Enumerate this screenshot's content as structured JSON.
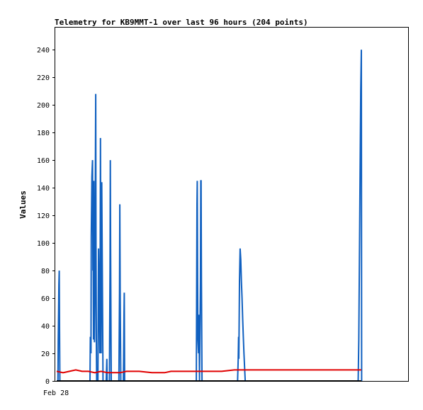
{
  "chart_data": {
    "type": "line",
    "title": "Telemetry for KB9MMT-1 over last 96 hours (204 points)",
    "xlabel": "",
    "ylabel": "Values",
    "ylim": [
      0,
      256
    ],
    "yticks": [
      0,
      20,
      40,
      60,
      80,
      100,
      120,
      140,
      160,
      180,
      200,
      220,
      240
    ],
    "xlim": [
      0,
      96
    ],
    "xtick_labels": [
      {
        "x": 0,
        "label": "Feb 28"
      }
    ],
    "grid": false,
    "series": [
      {
        "color": "#1060c0",
        "points": [
          [
            0,
            0
          ],
          [
            0.4,
            0
          ],
          [
            0.5,
            30
          ],
          [
            0.6,
            50
          ],
          [
            0.7,
            70
          ],
          [
            0.8,
            80
          ],
          [
            0.9,
            40
          ],
          [
            1.0,
            0
          ],
          [
            2,
            0
          ],
          [
            10.5,
            0
          ],
          [
            10.6,
            32
          ],
          [
            10.7,
            25
          ],
          [
            10.8,
            20
          ],
          [
            10.9,
            105
          ],
          [
            11.0,
            128
          ],
          [
            11.1,
            148
          ],
          [
            11.2,
            155
          ],
          [
            11.3,
            160
          ],
          [
            11.4,
            80
          ],
          [
            11.5,
            95
          ],
          [
            11.6,
            30
          ],
          [
            11.7,
            145
          ],
          [
            11.8,
            72
          ],
          [
            11.9,
            28
          ],
          [
            12.0,
            55
          ],
          [
            12.1,
            90
          ],
          [
            12.2,
            150
          ],
          [
            12.3,
            208
          ],
          [
            12.4,
            100
          ],
          [
            12.5,
            30
          ],
          [
            12.6,
            0
          ],
          [
            13.0,
            0
          ],
          [
            13.2,
            96
          ],
          [
            13.4,
            60
          ],
          [
            13.6,
            20
          ],
          [
            13.7,
            88
          ],
          [
            13.8,
            176
          ],
          [
            13.9,
            80
          ],
          [
            14.0,
            20
          ],
          [
            14.2,
            144
          ],
          [
            14.4,
            72
          ],
          [
            14.6,
            0
          ],
          [
            15.6,
            0
          ],
          [
            15.8,
            16
          ],
          [
            15.9,
            0
          ],
          [
            16.6,
            0
          ],
          [
            16.8,
            80
          ],
          [
            16.9,
            160
          ],
          [
            17.0,
            96
          ],
          [
            17.2,
            0
          ],
          [
            19.6,
            0
          ],
          [
            19.8,
            64
          ],
          [
            19.9,
            128
          ],
          [
            20.0,
            64
          ],
          [
            20.2,
            0
          ],
          [
            21.0,
            0
          ],
          [
            21.1,
            16
          ],
          [
            21.2,
            48
          ],
          [
            21.3,
            64
          ],
          [
            21.4,
            0
          ],
          [
            44.0,
            0
          ],
          [
            44.1,
            55
          ],
          [
            44.2,
            128
          ],
          [
            44.3,
            145
          ],
          [
            44.4,
            72
          ],
          [
            44.5,
            30
          ],
          [
            44.7,
            20
          ],
          [
            44.8,
            48
          ],
          [
            44.9,
            30
          ],
          [
            45.0,
            0
          ],
          [
            45.3,
            72
          ],
          [
            45.4,
            145
          ],
          [
            45.5,
            145
          ],
          [
            45.6,
            72
          ],
          [
            45.8,
            0
          ],
          [
            57.0,
            0
          ],
          [
            57.2,
            16
          ],
          [
            57.3,
            32
          ],
          [
            57.4,
            16
          ],
          [
            57.6,
            72
          ],
          [
            57.8,
            96
          ],
          [
            58.0,
            88
          ],
          [
            58.2,
            72
          ],
          [
            58.4,
            60
          ],
          [
            58.6,
            45
          ],
          [
            58.8,
            32
          ],
          [
            59.0,
            20
          ],
          [
            59.2,
            10
          ],
          [
            59.4,
            0
          ],
          [
            95.0,
            0
          ],
          [
            95.2,
            30
          ],
          [
            95.4,
            90
          ],
          [
            95.6,
            150
          ],
          [
            95.8,
            210
          ],
          [
            96.0,
            240
          ],
          [
            96.1,
            0
          ]
        ]
      },
      {
        "color": "#e00000",
        "points": [
          [
            0,
            7
          ],
          [
            2,
            6
          ],
          [
            4,
            7
          ],
          [
            6,
            8
          ],
          [
            8,
            7
          ],
          [
            10,
            7
          ],
          [
            12,
            6
          ],
          [
            14,
            7
          ],
          [
            16,
            6
          ],
          [
            18,
            6
          ],
          [
            20,
            6
          ],
          [
            22,
            7
          ],
          [
            26,
            7
          ],
          [
            30,
            6
          ],
          [
            34,
            6
          ],
          [
            36,
            7
          ],
          [
            40,
            7
          ],
          [
            44,
            7
          ],
          [
            48,
            7
          ],
          [
            52,
            7
          ],
          [
            56,
            8
          ],
          [
            60,
            8
          ],
          [
            70,
            8
          ],
          [
            80,
            8
          ],
          [
            90,
            8
          ],
          [
            96,
            8
          ]
        ]
      },
      {
        "color": "#000000",
        "points": [
          [
            0,
            0
          ],
          [
            96,
            0
          ]
        ]
      }
    ]
  }
}
